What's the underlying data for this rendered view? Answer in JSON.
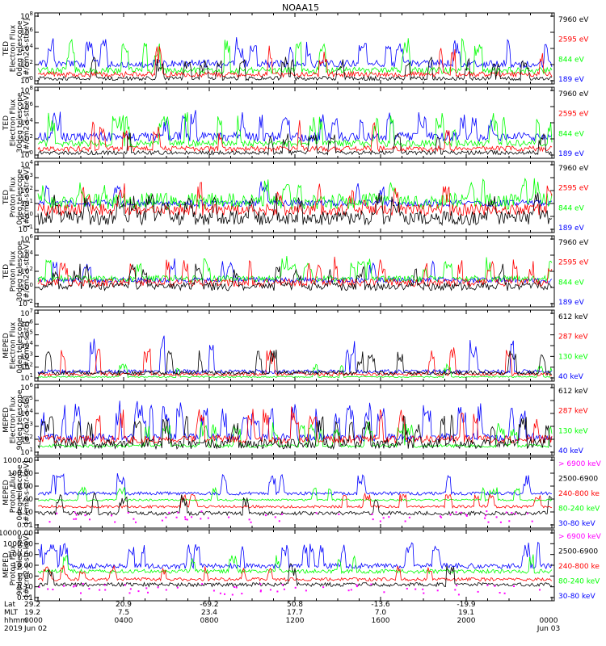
{
  "title": "NOAA15",
  "colors": {
    "blue": "#0000ff",
    "red": "#ff0000",
    "green": "#00ff00",
    "black": "#000000",
    "magenta": "#ff00ff"
  },
  "chart_data": [
    {
      "type": "line",
      "scale": "log",
      "ylabel": [
        "TED",
        "Electron Flux",
        "0deg telescope",
        "[#/cm2-s-str-eV]"
      ],
      "ytick_labels": [
        "10^0",
        "10^2",
        "10^4",
        "10^6",
        "10^8"
      ],
      "legend": [
        {
          "text": "7960 eV",
          "color": "#000000"
        },
        {
          "text": "2595 eV",
          "color": "#ff0000"
        },
        {
          "text": "844 eV",
          "color": "#00ff00"
        },
        {
          "text": "189 eV",
          "color": "#0000ff"
        }
      ]
    },
    {
      "type": "line",
      "scale": "log",
      "ylabel": [
        "TED",
        "Electron Flux",
        "30deg telescope",
        "[#/cm2-s-str-eV]"
      ],
      "ytick_labels": [
        "10^0",
        "10^2",
        "10^4",
        "10^6",
        "10^8"
      ],
      "legend": [
        {
          "text": "7960 eV",
          "color": "#000000"
        },
        {
          "text": "2595 eV",
          "color": "#ff0000"
        },
        {
          "text": "844 eV",
          "color": "#00ff00"
        },
        {
          "text": "189 eV",
          "color": "#0000ff"
        }
      ]
    },
    {
      "type": "line",
      "scale": "log",
      "ylabel": [
        "TED",
        "Proton Flux",
        "0deg telescope",
        "[#/cm2-s-str-eV]"
      ],
      "ytick_labels": [
        "10^-1",
        "10^0",
        "10^1",
        "10^2",
        "10^3",
        "10^4"
      ],
      "legend": [
        {
          "text": "7960 eV",
          "color": "#000000"
        },
        {
          "text": "2595 eV",
          "color": "#ff0000"
        },
        {
          "text": "844 eV",
          "color": "#00ff00"
        },
        {
          "text": "189 eV",
          "color": "#0000ff"
        }
      ]
    },
    {
      "type": "line",
      "scale": "log",
      "ylabel": [
        "TED",
        "Proton Flux",
        "30deg telescope",
        "[#/cm2-s-str-eV]"
      ],
      "ytick_labels": [
        "10^-2",
        "10^0",
        "10^2",
        "10^4",
        "10^6"
      ],
      "legend": [
        {
          "text": "7960 eV",
          "color": "#000000"
        },
        {
          "text": "2595 eV",
          "color": "#ff0000"
        },
        {
          "text": "844 eV",
          "color": "#00ff00"
        },
        {
          "text": "189 eV",
          "color": "#0000ff"
        }
      ]
    },
    {
      "type": "line",
      "scale": "log",
      "ylabel": [
        "MEPED",
        "Electron Flux",
        "0deg telescope",
        "[#/cm2-s-str]"
      ],
      "ytick_labels": [
        "10^1",
        "10^2",
        "10^3",
        "10^4",
        "10^5",
        "10^6",
        "10^7"
      ],
      "legend": [
        {
          "text": "612 keV",
          "color": "#000000"
        },
        {
          "text": "287 keV",
          "color": "#ff0000"
        },
        {
          "text": "130 keV",
          "color": "#00ff00"
        },
        {
          "text": "40 keV",
          "color": "#0000ff"
        }
      ]
    },
    {
      "type": "line",
      "scale": "log",
      "ylabel": [
        "MEPED",
        "Electron Flux",
        "90deg telescope",
        "[#/cm2-s-str]"
      ],
      "ytick_labels": [
        "10^1",
        "10^2",
        "10^3",
        "10^4",
        "10^5",
        "10^6"
      ],
      "legend": [
        {
          "text": "612 keV",
          "color": "#000000"
        },
        {
          "text": "287 keV",
          "color": "#ff0000"
        },
        {
          "text": "130 keV",
          "color": "#00ff00"
        },
        {
          "text": "40 keV",
          "color": "#0000ff"
        }
      ]
    },
    {
      "type": "line",
      "scale": "log",
      "ylabel": [
        "MEPED",
        "Proton Flux",
        "0deg telescope",
        "[#/cm2-s-str-keV]"
      ],
      "ytick_labels": [
        "0.01",
        "0.10",
        "1.00",
        "10.00",
        "100.00",
        "1000.00"
      ],
      "legend": [
        {
          "text": "> 6900 keV",
          "color": "#ff00ff"
        },
        {
          "text": "2500-6900",
          "color": "#000000"
        },
        {
          "text": "240-800 ke",
          "color": "#ff0000"
        },
        {
          "text": "80-240 keV",
          "color": "#00ff00"
        },
        {
          "text": "30-80 keV",
          "color": "#0000ff"
        }
      ]
    },
    {
      "type": "line",
      "scale": "log",
      "ylabel": [
        "MEPED",
        "Proton Flux",
        "90deg telescope",
        "[#/cm2-s-str-keV]"
      ],
      "ytick_labels": [
        "0.01",
        "0.10",
        "1.00",
        "10.00",
        "100.00",
        "1000.00",
        "10000.00"
      ],
      "legend": [
        {
          "text": "> 6900 keV",
          "color": "#ff00ff"
        },
        {
          "text": "2500-6900",
          "color": "#000000"
        },
        {
          "text": "240-800 ke",
          "color": "#ff0000"
        },
        {
          "text": "80-240 keV",
          "color": "#00ff00"
        },
        {
          "text": "30-80 keV",
          "color": "#0000ff"
        }
      ]
    }
  ],
  "x_axis": {
    "row_labels": [
      "Lat",
      "MLT",
      "hhmm",
      "2019"
    ],
    "columns": [
      [
        "29.2",
        "19.2",
        "0000",
        "Jun 02"
      ],
      [
        "20.9",
        "7.5",
        "0400",
        ""
      ],
      [
        "-69.2",
        "23.4",
        "0800",
        ""
      ],
      [
        "50.8",
        "17.7",
        "1200",
        ""
      ],
      [
        "-13.6",
        "7.0",
        "1600",
        ""
      ],
      [
        "-19.9",
        "19.1",
        "2000",
        ""
      ],
      [
        "",
        "",
        "0000",
        "Jun 03"
      ]
    ]
  }
}
